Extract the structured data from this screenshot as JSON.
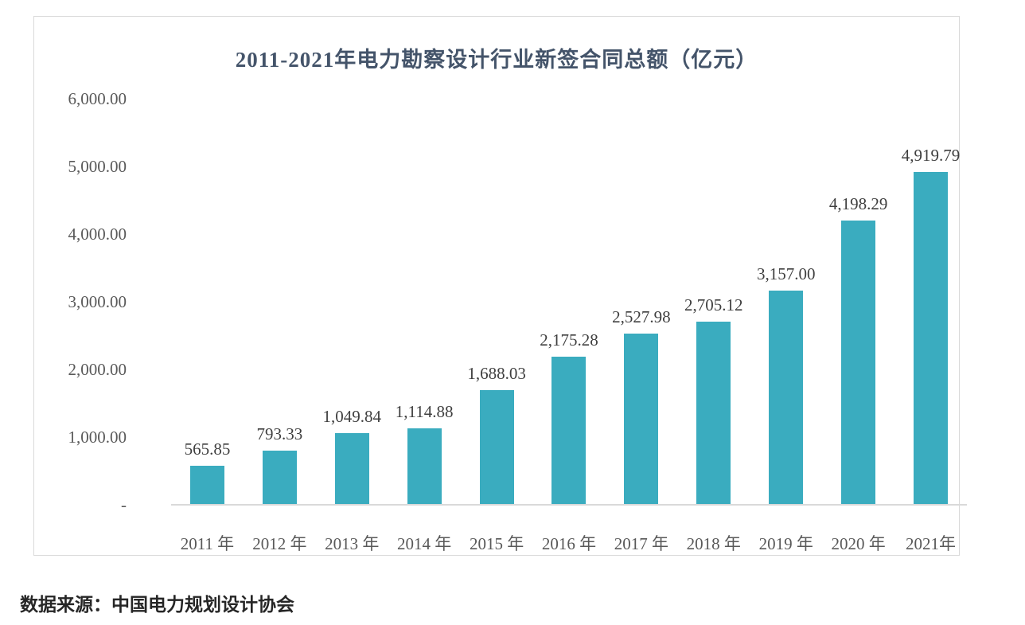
{
  "chart_data": {
    "type": "bar",
    "title": "2011-2021年电力勘察设计行业新签合同总额（亿元）",
    "categories": [
      "2011 年",
      "2012 年",
      "2013 年",
      "2014 年",
      "2015 年",
      "2016 年",
      "2017 年",
      "2018 年",
      "2019 年",
      "2020 年",
      "2021年"
    ],
    "values": [
      565.85,
      793.33,
      1049.84,
      1114.88,
      1688.03,
      2175.28,
      2527.98,
      2705.12,
      3157.0,
      4198.29,
      4919.79
    ],
    "value_labels": [
      "565.85",
      "793.33",
      "1,049.84",
      "1,114.88",
      "1,688.03",
      "2,175.28",
      "2,527.98",
      "2,705.12",
      "3,157.00",
      "4,198.29",
      "4,919.79"
    ],
    "y_tick_labels": [
      "6,000.00",
      "5,000.00",
      "4,000.00",
      "3,000.00",
      "2,000.00",
      "1,000.00",
      "-"
    ],
    "ylim": [
      0,
      6000
    ],
    "xlabel": "",
    "ylabel": "",
    "grid": false,
    "legend": null
  },
  "source_note": "数据来源：中国电力规划设计协会",
  "colors": {
    "bar_color": "#3aacbf",
    "title_color": "#44546a",
    "tick_color": "#595959",
    "value_label_color": "#3f3f3f",
    "axis_line_color": "#d9d9d9",
    "panel_border": "#d9d9d9",
    "source_color": "#262626"
  }
}
